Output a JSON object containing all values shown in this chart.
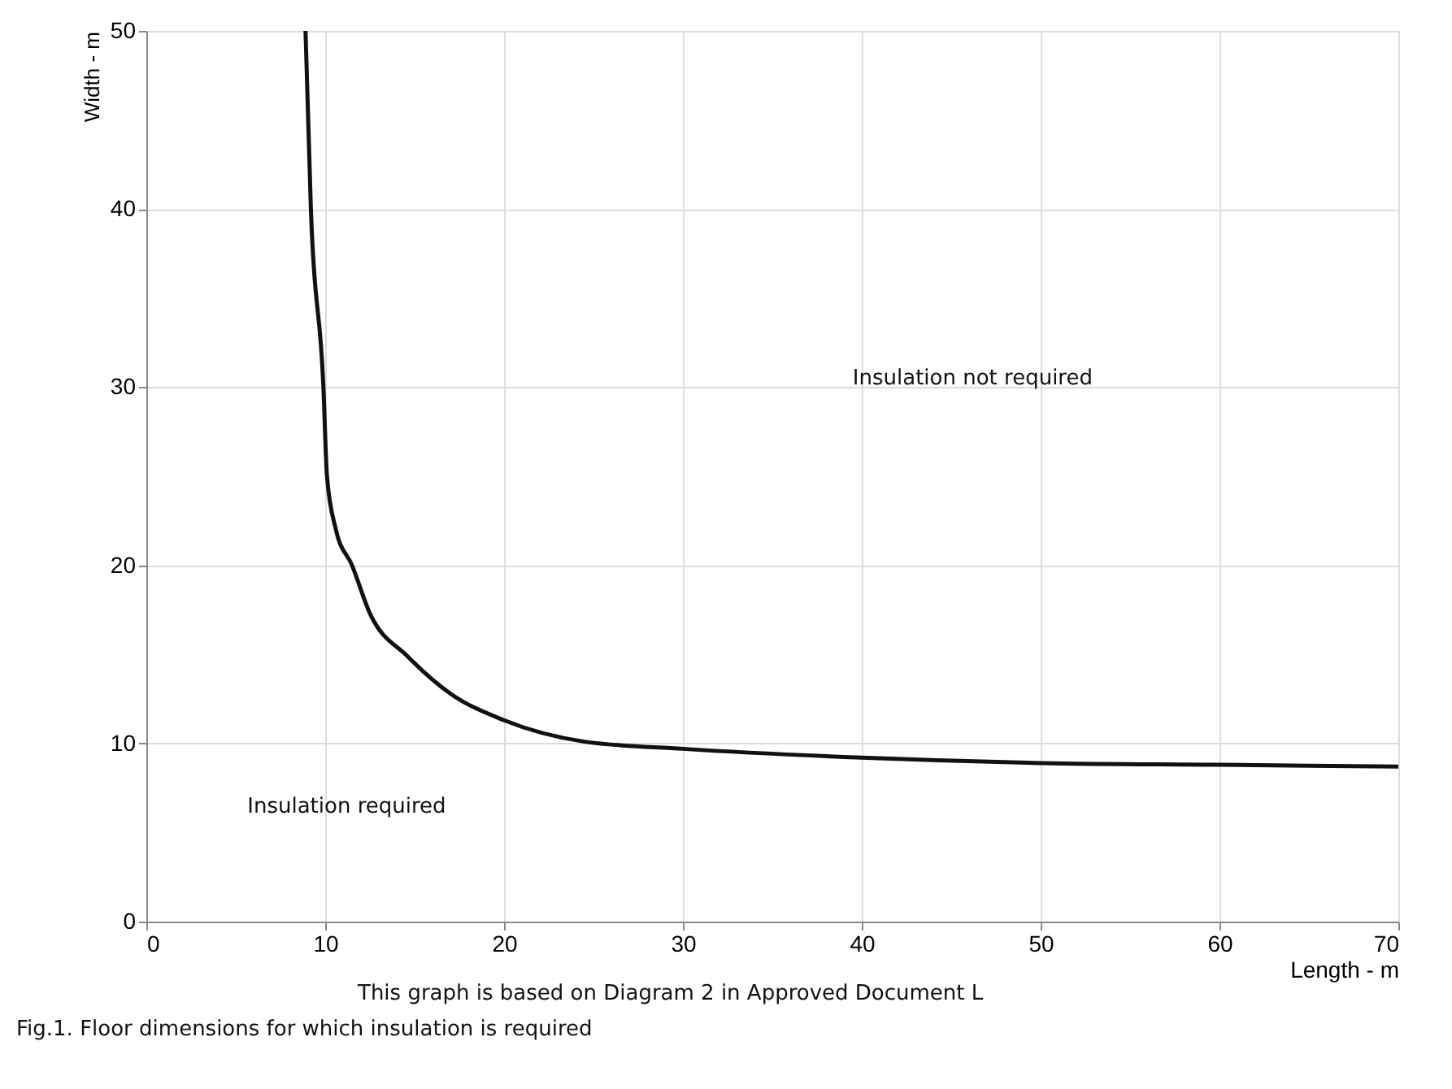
{
  "chart_data": {
    "type": "line",
    "xlabel": "Length - m",
    "ylabel": "Width - m",
    "x": [
      8.9,
      9.2,
      9.9,
      10.1,
      10.6,
      11.5,
      12.5,
      14.6,
      17,
      20,
      24.5,
      30,
      40,
      50,
      60,
      70
    ],
    "series": [
      {
        "color": "#111111",
        "values": [
          50,
          40,
          30,
          25,
          22,
          20,
          17.3,
          14.9,
          12.8,
          11.3,
          10.1,
          9.7,
          9.2,
          8.9,
          8.8,
          8.7
        ]
      }
    ],
    "xlim": [
      0,
      70
    ],
    "ylim": [
      0,
      50
    ],
    "xticks": [
      0,
      10,
      20,
      30,
      40,
      50,
      60,
      70
    ],
    "yticks": [
      0,
      10,
      20,
      30,
      40,
      50
    ],
    "grid": true,
    "marker": "none",
    "line_style": "solid",
    "annotations": [
      "Insulation not required",
      "Insulation required",
      "This graph is based on Diagram 2 in Approved Document L",
      "Fig.1. Floor dimensions for which insulation is required"
    ]
  }
}
